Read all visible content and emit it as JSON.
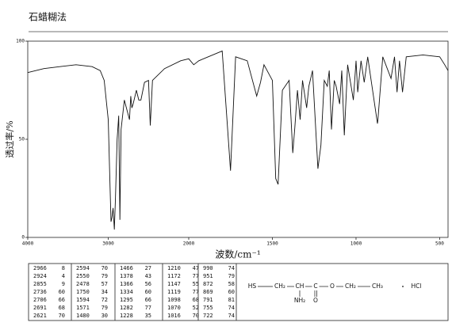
{
  "title": "石蜡糊法",
  "chart_data": {
    "type": "line",
    "x_label": "波数/cm⁻¹",
    "y_label": "透过率/%",
    "xlim": [
      4000,
      450
    ],
    "x_scale_break": 2000,
    "xticks": [
      4000,
      3000,
      2000,
      1500,
      1000,
      500
    ],
    "ylim": [
      0,
      100
    ],
    "yticks": [
      0,
      50,
      100
    ],
    "color": "#111111",
    "x": [
      4000,
      3800,
      3600,
      3400,
      3200,
      3100,
      3050,
      3000,
      2980,
      2966,
      2955,
      2940,
      2924,
      2910,
      2890,
      2870,
      2855,
      2840,
      2800,
      2736,
      2720,
      2706,
      2691,
      2650,
      2621,
      2594,
      2550,
      2500,
      2478,
      2450,
      2300,
      2100,
      2000,
      1970,
      1940,
      1800,
      1750,
      1720,
      1650,
      1594,
      1571,
      1550,
      1500,
      1480,
      1466,
      1440,
      1400,
      1378,
      1366,
      1350,
      1334,
      1320,
      1295,
      1282,
      1260,
      1228,
      1210,
      1190,
      1172,
      1160,
      1147,
      1130,
      1119,
      1098,
      1085,
      1070,
      1050,
      1016,
      1000,
      990,
      970,
      951,
      930,
      872,
      869,
      840,
      791,
      770,
      755,
      740,
      722,
      700,
      600,
      500,
      470,
      450
    ],
    "values": [
      84,
      86,
      87,
      88,
      87,
      85,
      80,
      60,
      30,
      8,
      10,
      15,
      4,
      20,
      50,
      62,
      9,
      55,
      70,
      60,
      72,
      66,
      68,
      75,
      70,
      70,
      79,
      80,
      57,
      80,
      86,
      90,
      91,
      88,
      90,
      95,
      34,
      92,
      90,
      72,
      79,
      88,
      80,
      30,
      27,
      75,
      80,
      43,
      56,
      75,
      60,
      80,
      66,
      77,
      85,
      35,
      47,
      80,
      77,
      85,
      55,
      80,
      77,
      68,
      85,
      52,
      88,
      70,
      90,
      74,
      90,
      79,
      92,
      58,
      60,
      92,
      81,
      92,
      74,
      90,
      74,
      92,
      93,
      92,
      88,
      85
    ]
  },
  "peak_table": {
    "columns": [
      [
        [
          2966,
          8
        ],
        [
          2924,
          4
        ],
        [
          2855,
          9
        ],
        [
          2736,
          60
        ],
        [
          2706,
          66
        ],
        [
          2691,
          68
        ],
        [
          2621,
          70
        ]
      ],
      [
        [
          2594,
          70
        ],
        [
          2550,
          79
        ],
        [
          2478,
          57
        ],
        [
          1750,
          34
        ],
        [
          1594,
          72
        ],
        [
          1571,
          79
        ],
        [
          1480,
          30
        ]
      ],
      [
        [
          1466,
          27
        ],
        [
          1378,
          43
        ],
        [
          1366,
          56
        ],
        [
          1334,
          60
        ],
        [
          1295,
          66
        ],
        [
          1282,
          77
        ],
        [
          1228,
          35
        ]
      ],
      [
        [
          1210,
          47
        ],
        [
          1172,
          77
        ],
        [
          1147,
          55
        ],
        [
          1119,
          77
        ],
        [
          1098,
          68
        ],
        [
          1070,
          52
        ],
        [
          1016,
          70
        ]
      ],
      [
        [
          990,
          74
        ],
        [
          951,
          79
        ],
        [
          872,
          58
        ],
        [
          869,
          60
        ],
        [
          791,
          81
        ],
        [
          755,
          74
        ],
        [
          722,
          74
        ]
      ]
    ]
  },
  "structure": {
    "groups": [
      "HS",
      "CH₂",
      "CH",
      "C",
      "O",
      "CH₂",
      "CH₃"
    ],
    "substituent": "NH₂",
    "carbonyl_o": "O",
    "salt": "HCl"
  }
}
